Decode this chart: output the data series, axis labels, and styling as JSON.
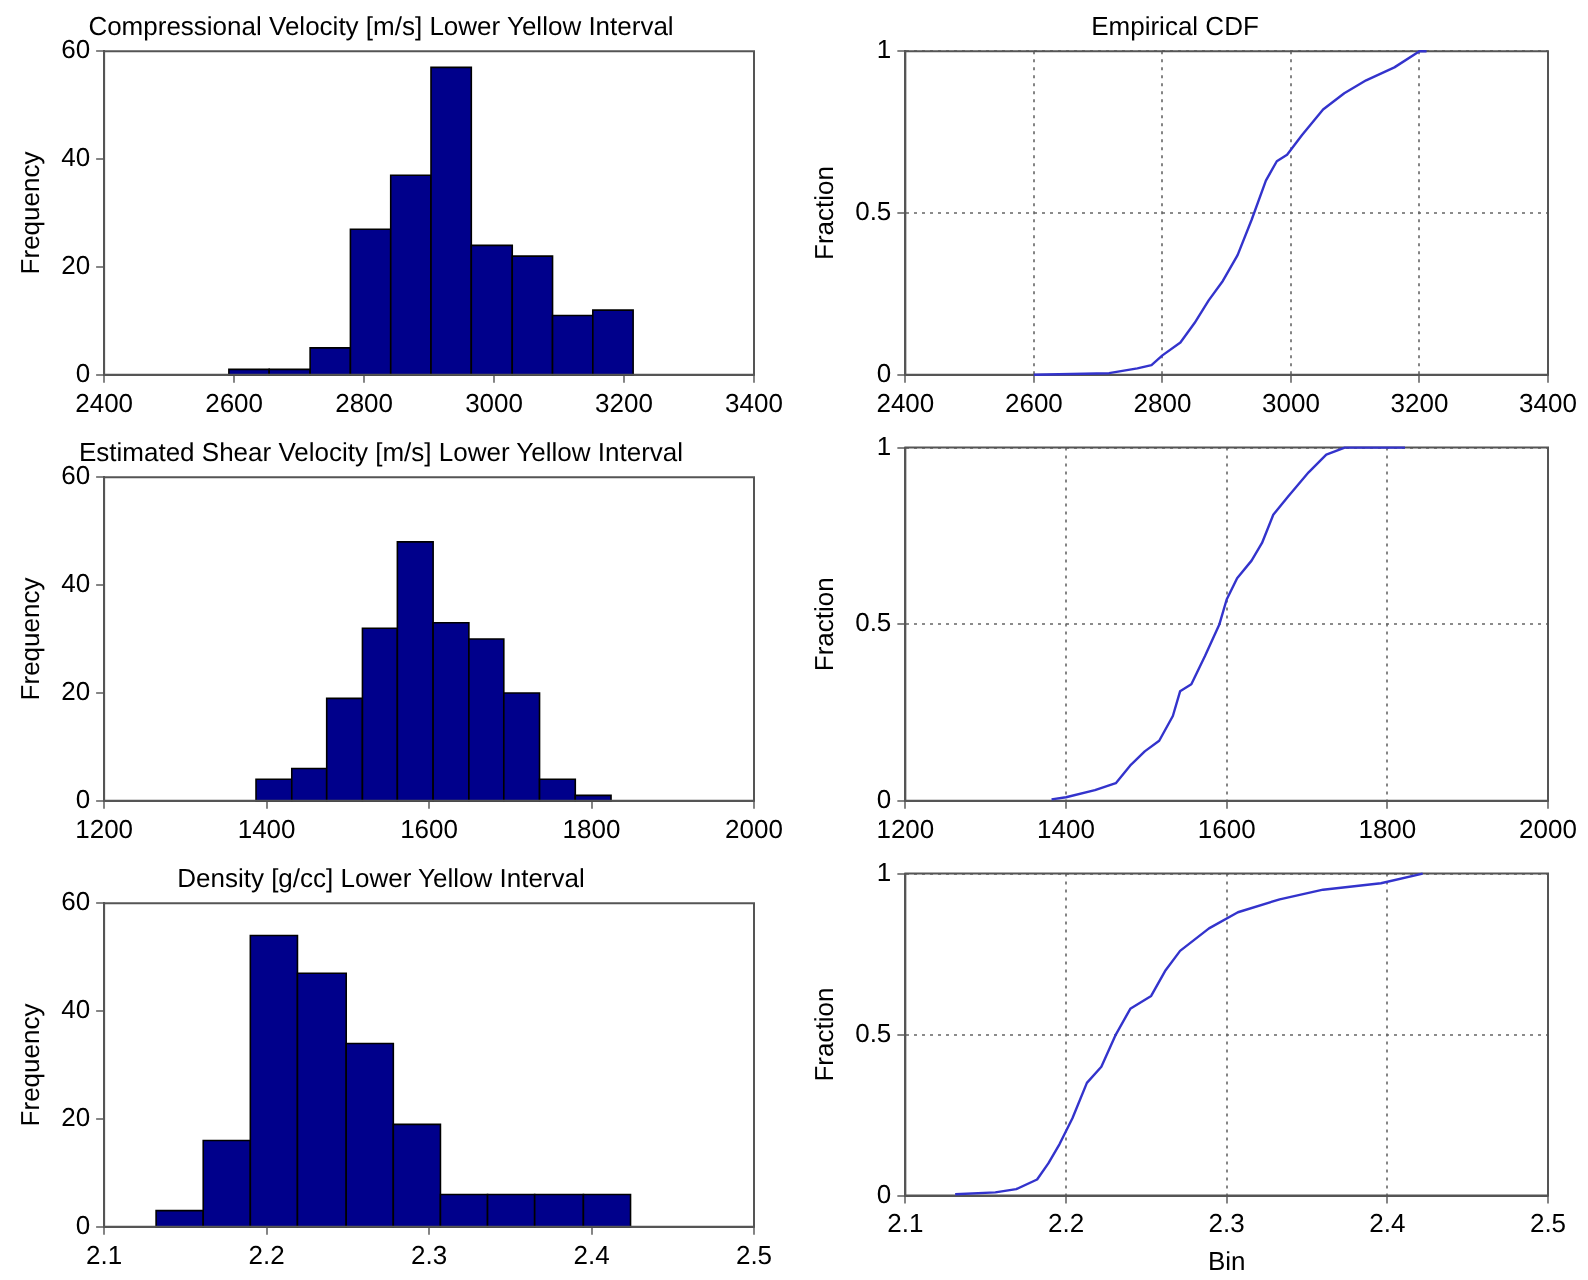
{
  "chart_data": [
    {
      "type": "histogram",
      "title": "Compressional Velocity [m/s] Lower Yellow Interval",
      "ylabel": "Frequency",
      "bins": [
        2592,
        2654,
        2717,
        2779,
        2841,
        2903,
        2965,
        3028,
        3090,
        3152,
        3214
      ],
      "values": [
        1,
        1,
        5,
        27,
        37,
        57,
        24,
        22,
        11,
        12
      ],
      "color": "#00008b",
      "xlim": [
        2400,
        3400
      ],
      "xticks": [
        2400,
        2600,
        2800,
        3000,
        3200,
        3400
      ],
      "ylim": [
        0,
        60
      ],
      "yticks": [
        0,
        20,
        40,
        60
      ]
    },
    {
      "type": "line",
      "title": "Empirical CDF",
      "ylabel": "Fraction",
      "x": [
        2600,
        2717,
        2761,
        2783,
        2800,
        2828,
        2850,
        2872,
        2894,
        2917,
        2939,
        2961,
        2978,
        2994,
        3017,
        3050,
        3083,
        3117,
        3161,
        3200,
        3211
      ],
      "values": [
        0,
        0.005,
        0.02,
        0.03,
        0.06,
        0.1,
        0.16,
        0.23,
        0.29,
        0.37,
        0.48,
        0.6,
        0.66,
        0.68,
        0.74,
        0.82,
        0.87,
        0.91,
        0.95,
        1,
        1
      ],
      "color": "#3333cc",
      "xlim": [
        2400,
        3400
      ],
      "xticks": [
        2400,
        2600,
        2800,
        3000,
        3200,
        3400
      ],
      "ylim": [
        0,
        1
      ],
      "yticks": [
        0,
        0.5,
        1
      ],
      "grid": true,
      "line_style": "solid"
    },
    {
      "type": "histogram",
      "title": "Estimated Shear Velocity [m/s] Lower Yellow Interval",
      "ylabel": "Frequency",
      "bins": [
        1387,
        1431,
        1474,
        1518,
        1561,
        1605,
        1649,
        1692,
        1736,
        1780,
        1824
      ],
      "values": [
        4,
        6,
        19,
        32,
        48,
        33,
        30,
        20,
        4,
        1
      ],
      "color": "#00008b",
      "xlim": [
        1200,
        2000
      ],
      "xticks": [
        1200,
        1400,
        1600,
        1800,
        2000
      ],
      "ylim": [
        0,
        60
      ],
      "yticks": [
        0,
        20,
        40,
        60
      ]
    },
    {
      "type": "line",
      "ylabel": "Fraction",
      "x": [
        1382,
        1400,
        1436,
        1462,
        1480,
        1498,
        1516,
        1533,
        1542,
        1556,
        1573,
        1591,
        1600,
        1613,
        1631,
        1644,
        1658,
        1676,
        1702,
        1724,
        1747,
        1822
      ],
      "values": [
        0.004,
        0.01,
        0.03,
        0.05,
        0.1,
        0.14,
        0.17,
        0.24,
        0.31,
        0.33,
        0.41,
        0.5,
        0.57,
        0.63,
        0.68,
        0.73,
        0.81,
        0.86,
        0.93,
        0.98,
        1,
        1
      ],
      "color": "#3333cc",
      "xlim": [
        1200,
        2000
      ],
      "xticks": [
        1200,
        1400,
        1600,
        1800,
        2000
      ],
      "ylim": [
        0,
        1
      ],
      "yticks": [
        0,
        0.5,
        1
      ],
      "grid": true,
      "line_style": "solid"
    },
    {
      "type": "histogram",
      "title": "Density [g/cc] Lower Yellow Interval",
      "ylabel": "Frequency",
      "bins": [
        2.132,
        2.161,
        2.19,
        2.219,
        2.249,
        2.278,
        2.307,
        2.336,
        2.365,
        2.395,
        2.424
      ],
      "values": [
        3,
        16,
        54,
        47,
        34,
        19,
        6,
        6,
        6,
        6
      ],
      "color": "#00008b",
      "xlim": [
        2.1,
        2.5
      ],
      "xticks": [
        2.1,
        2.2,
        2.3,
        2.4,
        2.5
      ],
      "ylim": [
        0,
        60
      ],
      "yticks": [
        0,
        20,
        40,
        60
      ]
    },
    {
      "type": "line",
      "xlabel": "Bin",
      "ylabel": "Fraction",
      "x": [
        2.131,
        2.156,
        2.169,
        2.182,
        2.189,
        2.196,
        2.204,
        2.213,
        2.222,
        2.231,
        2.24,
        2.253,
        2.262,
        2.271,
        2.289,
        2.307,
        2.333,
        2.36,
        2.396,
        2.422
      ],
      "values": [
        0.004,
        0.01,
        0.02,
        0.05,
        0.1,
        0.16,
        0.24,
        0.35,
        0.4,
        0.5,
        0.58,
        0.62,
        0.7,
        0.76,
        0.83,
        0.88,
        0.92,
        0.95,
        0.97,
        1
      ],
      "color": "#3333cc",
      "xlim": [
        2.1,
        2.5
      ],
      "xticks": [
        2.1,
        2.2,
        2.3,
        2.4,
        2.5
      ],
      "ylim": [
        0,
        1
      ],
      "yticks": [
        0,
        0.5,
        1
      ],
      "grid": true,
      "line_style": "solid"
    }
  ]
}
